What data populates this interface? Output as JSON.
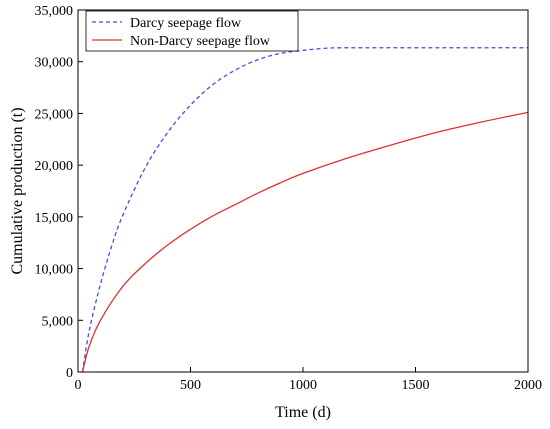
{
  "chart_data": {
    "type": "line",
    "title": "",
    "xlabel": "Time (d)",
    "ylabel": "Cumulative production (t)",
    "xlim": [
      0,
      2000
    ],
    "ylim": [
      0,
      35000
    ],
    "x_ticks": [
      0,
      500,
      1000,
      1500,
      2000
    ],
    "y_ticks": [
      0,
      5000,
      10000,
      15000,
      20000,
      25000,
      30000,
      35000
    ],
    "x_tick_labels": [
      "0",
      "500",
      "1000",
      "1500",
      "2000"
    ],
    "y_tick_labels": [
      "0",
      "5,000",
      "10,000",
      "15,000",
      "20,000",
      "25,000",
      "30,000",
      "35,000"
    ],
    "grid": false,
    "legend_position": "top-left",
    "series": [
      {
        "name": "Darcy seepage flow",
        "color": "#4a4ae0",
        "line_style": "dashed",
        "x": [
          20,
          50,
          100,
          150,
          200,
          300,
          400,
          500,
          600,
          700,
          800,
          900,
          1000,
          1100,
          1200,
          1500,
          2000
        ],
        "y": [
          0,
          4000,
          8500,
          12200,
          15200,
          19800,
          23200,
          25800,
          27800,
          29200,
          30200,
          30800,
          31100,
          31300,
          31350,
          31350,
          31350
        ]
      },
      {
        "name": "Non-Darcy seepage flow",
        "color": "#e03030",
        "line_style": "solid",
        "x": [
          20,
          50,
          100,
          200,
          300,
          400,
          500,
          600,
          700,
          800,
          900,
          1000,
          1200,
          1400,
          1600,
          1800,
          2000
        ],
        "y": [
          0,
          2500,
          5000,
          8300,
          10500,
          12300,
          13800,
          15100,
          16200,
          17300,
          18300,
          19200,
          20700,
          22000,
          23200,
          24200,
          25100
        ]
      }
    ]
  }
}
